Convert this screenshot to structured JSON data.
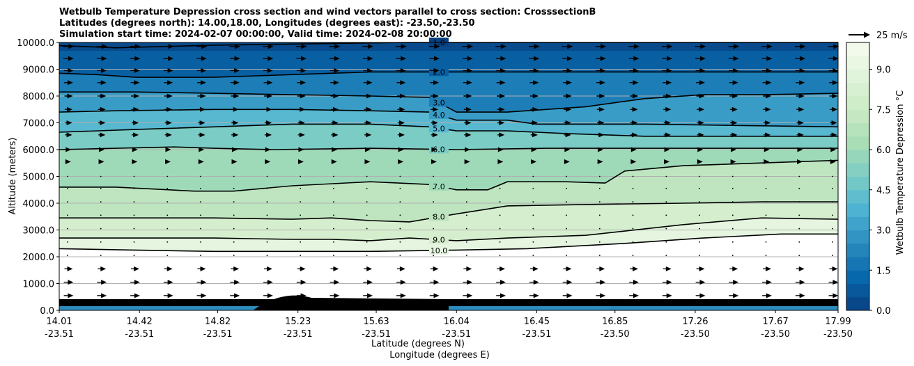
{
  "chart_data": {
    "type": "contour",
    "title_lines": [
      "Wetbulb Temperature Depression cross section and wind vectors parallel to cross section: CrosssectionB",
      "Latitudes (degrees north): 14.00,18.00, Longitudes (degrees east): -23.50,-23.50",
      "Simulation start time: 2024-02-07 00:00:00, Valid time: 2024-02-08 20:00:00"
    ],
    "ylabel": "Altitude (meters)",
    "xlabel_lat": "Latitude (degrees N)",
    "xlabel_lon": "Longitude (degrees E)",
    "ylim": [
      0,
      10000
    ],
    "yticks": [
      "0.0",
      "1000.0",
      "2000.0",
      "3000.0",
      "4000.0",
      "5000.0",
      "6000.0",
      "7000.0",
      "8000.0",
      "9000.0",
      "10000.0"
    ],
    "ytick_values": [
      0,
      1000,
      2000,
      3000,
      4000,
      5000,
      6000,
      7000,
      8000,
      9000,
      10000
    ],
    "xlim": [
      14.01,
      17.99
    ],
    "xticks_lat": [
      "14.01",
      "14.42",
      "14.82",
      "15.23",
      "15.63",
      "16.04",
      "16.45",
      "16.85",
      "17.26",
      "17.67",
      "17.99"
    ],
    "xticks_lon": [
      "-23.51",
      "-23.51",
      "-23.51",
      "-23.51",
      "-23.51",
      "-23.51",
      "-23.51",
      "-23.50",
      "-23.50",
      "-23.50",
      "-23.50"
    ],
    "xtick_values": [
      14.01,
      14.42,
      14.82,
      15.23,
      15.63,
      16.04,
      16.45,
      16.85,
      17.26,
      17.67,
      17.99
    ],
    "colorbar": {
      "label": "Wetbulb Temperature Depression °C",
      "range": [
        0,
        10
      ],
      "ticks": [
        "0.0",
        "1.5",
        "3.0",
        "4.5",
        "6.0",
        "7.5",
        "9.0"
      ],
      "tick_values": [
        0,
        1.5,
        3.0,
        4.5,
        6.0,
        7.5,
        9.0
      ],
      "colormap": "GnBu_r",
      "colors": [
        "#084081",
        "#0868ac",
        "#2b8cbe",
        "#4eb3d3",
        "#7bccc4",
        "#a8ddb5",
        "#ccebc5",
        "#e0f3db",
        "#f7fcf0"
      ]
    },
    "contour_levels": [
      "1.0",
      "2.0",
      "3.0",
      "4.0",
      "5.0",
      "6.0",
      "7.0",
      "8.0",
      "9.0",
      "10.0"
    ],
    "contours": [
      {
        "level": 1.0,
        "lat": [
          14.01,
          14.3,
          14.8,
          15.3,
          15.8,
          16.04,
          16.5,
          17.0,
          17.5,
          17.99
        ],
        "alt": [
          9880,
          9800,
          9900,
          9950,
          10000,
          10000,
          10000,
          10000,
          10000,
          10000
        ]
      },
      {
        "level": 2.0,
        "lat": [
          14.01,
          14.2,
          14.4,
          14.8,
          15.2,
          15.6,
          16.04,
          16.5,
          17.0,
          17.5,
          17.99
        ],
        "alt": [
          8850,
          8800,
          8700,
          8700,
          8800,
          8900,
          8900,
          8900,
          8900,
          8900,
          8900
        ]
      },
      {
        "level": 3.0,
        "lat": [
          14.01,
          14.4,
          14.8,
          15.2,
          15.6,
          15.9,
          16.04,
          16.3,
          16.7,
          17.0,
          17.3,
          17.6,
          17.99
        ],
        "alt": [
          8150,
          8150,
          8100,
          8050,
          8000,
          7950,
          7400,
          7400,
          7600,
          7900,
          8050,
          8050,
          8100
        ]
      },
      {
        "level": 4.0,
        "lat": [
          14.01,
          14.3,
          14.8,
          15.2,
          15.6,
          15.9,
          16.04,
          16.3,
          16.45,
          16.6,
          17.0,
          17.5,
          17.99
        ],
        "alt": [
          7400,
          7450,
          7500,
          7500,
          7450,
          7400,
          7100,
          7100,
          6950,
          6950,
          6950,
          6900,
          6850
        ]
      },
      {
        "level": 5.0,
        "lat": [
          14.01,
          14.4,
          14.8,
          15.2,
          15.6,
          15.9,
          16.04,
          16.3,
          16.6,
          17.0,
          17.5,
          17.99
        ],
        "alt": [
          6650,
          6750,
          6850,
          6950,
          6950,
          6850,
          6700,
          6700,
          6600,
          6500,
          6500,
          6500
        ]
      },
      {
        "level": 6.0,
        "lat": [
          14.01,
          14.3,
          14.6,
          14.8,
          15.1,
          15.6,
          16.04,
          16.5,
          17.0,
          17.5,
          17.99
        ],
        "alt": [
          6000,
          6050,
          6100,
          6050,
          6000,
          6050,
          6000,
          6050,
          6050,
          6050,
          6050
        ]
      },
      {
        "level": 7.0,
        "lat": [
          14.01,
          14.3,
          14.7,
          14.9,
          15.2,
          15.6,
          15.9,
          16.04,
          16.2,
          16.3,
          16.6,
          16.8,
          16.9,
          17.2,
          17.6,
          17.99
        ],
        "alt": [
          4600,
          4600,
          4450,
          4450,
          4650,
          4800,
          4700,
          4500,
          4500,
          4800,
          4800,
          4750,
          5200,
          5400,
          5500,
          5600
        ]
      },
      {
        "level": 8.0,
        "lat": [
          14.01,
          14.4,
          14.8,
          15.2,
          15.4,
          15.6,
          15.8,
          16.04,
          16.3,
          16.7,
          17.2,
          17.6,
          17.99
        ],
        "alt": [
          3450,
          3450,
          3450,
          3400,
          3450,
          3350,
          3300,
          3600,
          3900,
          3950,
          4000,
          4050,
          4050
        ]
      },
      {
        "level": 9.0,
        "lat": [
          14.01,
          14.4,
          14.8,
          15.2,
          15.4,
          15.6,
          15.8,
          16.04,
          16.3,
          16.7,
          17.2,
          17.6,
          17.99
        ],
        "alt": [
          2700,
          2700,
          2700,
          2650,
          2650,
          2600,
          2700,
          2600,
          2700,
          2800,
          3200,
          3450,
          3400
        ]
      },
      {
        "level": 10.0,
        "lat": [
          14.01,
          14.4,
          14.8,
          15.2,
          15.6,
          16.04,
          16.4,
          16.9,
          17.3,
          17.7,
          17.99
        ],
        "alt": [
          2300,
          2250,
          2200,
          2200,
          2200,
          2250,
          2300,
          2500,
          2700,
          2850,
          2850
        ]
      }
    ],
    "wind_legend": "25 m/s",
    "wind_rows_m": [
      9850,
      9400,
      8950,
      8500,
      8000,
      7500,
      7000,
      6550,
      6000,
      5550,
      5000,
      4550,
      4050,
      3550,
      3050,
      2550,
      2050,
      1550,
      1050,
      550
    ],
    "wind_speeds_ms": [
      14,
      13,
      12,
      11,
      10,
      9,
      8,
      8,
      5,
      4,
      2,
      1,
      1,
      1,
      1,
      1,
      1,
      10,
      12,
      12
    ]
  }
}
